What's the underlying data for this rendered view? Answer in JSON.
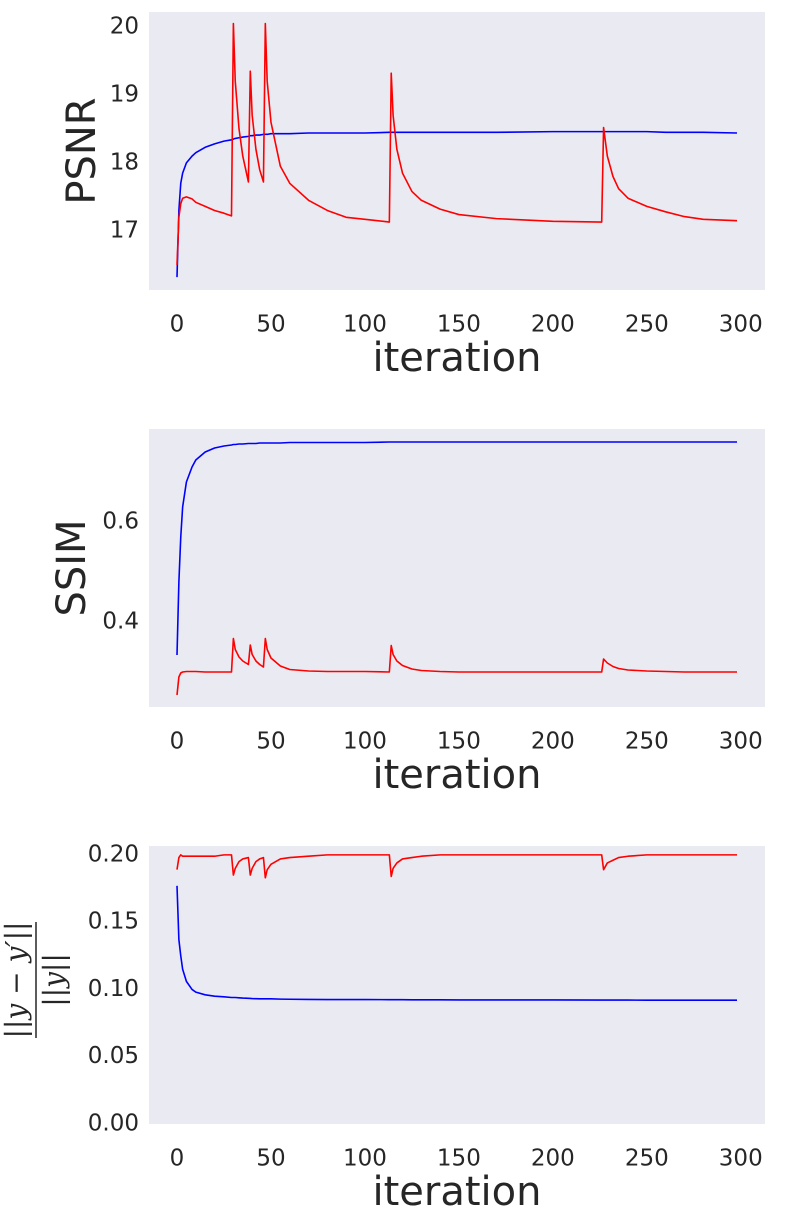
{
  "chart_data": [
    {
      "type": "line",
      "xlabel": "iteration",
      "ylabel": "PSNR",
      "x": [
        0,
        1,
        2,
        3,
        5,
        8,
        10,
        15,
        20,
        25,
        29,
        30,
        31,
        33,
        35,
        38,
        39,
        40,
        42,
        44,
        46,
        47,
        48,
        50,
        55,
        60,
        70,
        80,
        90,
        100,
        113,
        114,
        115,
        117,
        120,
        125,
        130,
        140,
        150,
        170,
        200,
        226,
        227,
        229,
        232,
        235,
        240,
        250,
        260,
        270,
        280,
        298
      ],
      "series": [
        {
          "color": "#0000ff",
          "values": [
            16.32,
            17.3,
            17.7,
            17.85,
            18.0,
            18.1,
            18.15,
            18.23,
            18.28,
            18.32,
            18.34,
            18.35,
            18.36,
            18.37,
            18.38,
            18.39,
            18.4,
            18.4,
            18.41,
            18.41,
            18.42,
            18.42,
            18.42,
            18.43,
            18.43,
            18.43,
            18.44,
            18.44,
            18.44,
            18.44,
            18.45,
            18.45,
            18.45,
            18.45,
            18.45,
            18.45,
            18.45,
            18.45,
            18.45,
            18.45,
            18.46,
            18.46,
            18.46,
            18.46,
            18.46,
            18.46,
            18.46,
            18.46,
            18.45,
            18.45,
            18.45,
            18.44
          ]
        },
        {
          "color": "#ff0000",
          "values": [
            16.5,
            17.2,
            17.4,
            17.48,
            17.5,
            17.47,
            17.42,
            17.36,
            17.3,
            17.26,
            17.22,
            20.05,
            19.2,
            18.5,
            18.1,
            17.72,
            19.35,
            18.7,
            18.2,
            17.9,
            17.72,
            20.05,
            19.2,
            18.6,
            17.95,
            17.7,
            17.45,
            17.3,
            17.2,
            17.17,
            17.13,
            19.32,
            18.7,
            18.2,
            17.85,
            17.58,
            17.45,
            17.32,
            17.24,
            17.18,
            17.14,
            17.13,
            18.52,
            18.1,
            17.8,
            17.62,
            17.48,
            17.36,
            17.28,
            17.21,
            17.17,
            17.15
          ]
        }
      ],
      "xlim": [
        -14.9,
        312.9
      ],
      "xticks": [
        0,
        50,
        100,
        150,
        200,
        250,
        300
      ],
      "ylim": [
        16.13,
        20.22
      ],
      "yticks": [
        17,
        18,
        19,
        20
      ],
      "grid": false,
      "background": "#eaeaf2"
    },
    {
      "type": "line",
      "xlabel": "iteration",
      "ylabel": "SSIM",
      "x": [
        0,
        1,
        2,
        3,
        5,
        8,
        10,
        15,
        20,
        25,
        29,
        30,
        31,
        33,
        35,
        38,
        39,
        40,
        42,
        44,
        46,
        47,
        48,
        50,
        55,
        60,
        70,
        80,
        90,
        100,
        113,
        114,
        115,
        117,
        120,
        125,
        130,
        140,
        150,
        170,
        200,
        226,
        227,
        229,
        232,
        235,
        240,
        250,
        260,
        270,
        280,
        298
      ],
      "series": [
        {
          "color": "#0000ff",
          "values": [
            0.334,
            0.48,
            0.57,
            0.63,
            0.68,
            0.71,
            0.724,
            0.74,
            0.748,
            0.752,
            0.754,
            0.755,
            0.755,
            0.756,
            0.756,
            0.757,
            0.757,
            0.757,
            0.757,
            0.758,
            0.758,
            0.758,
            0.758,
            0.758,
            0.758,
            0.759,
            0.759,
            0.759,
            0.759,
            0.759,
            0.76,
            0.76,
            0.76,
            0.76,
            0.76,
            0.76,
            0.76,
            0.76,
            0.76,
            0.76,
            0.76,
            0.76,
            0.76,
            0.76,
            0.76,
            0.76,
            0.76,
            0.76,
            0.76,
            0.76,
            0.76,
            0.76
          ]
        },
        {
          "color": "#ff0000",
          "values": [
            0.254,
            0.29,
            0.298,
            0.3,
            0.301,
            0.301,
            0.301,
            0.3,
            0.3,
            0.3,
            0.3,
            0.367,
            0.345,
            0.33,
            0.322,
            0.315,
            0.354,
            0.335,
            0.322,
            0.315,
            0.31,
            0.367,
            0.345,
            0.328,
            0.312,
            0.305,
            0.302,
            0.301,
            0.301,
            0.301,
            0.3,
            0.353,
            0.335,
            0.322,
            0.313,
            0.306,
            0.303,
            0.301,
            0.3,
            0.3,
            0.3,
            0.3,
            0.326,
            0.318,
            0.311,
            0.307,
            0.304,
            0.302,
            0.301,
            0.3,
            0.3,
            0.3
          ]
        }
      ],
      "xlim": [
        -14.9,
        312.9
      ],
      "xticks": [
        0,
        50,
        100,
        150,
        200,
        250,
        300
      ],
      "ylim": [
        0.23,
        0.786
      ],
      "yticks": [
        0.4,
        0.6
      ],
      "grid": false,
      "background": "#eaeaf2"
    },
    {
      "type": "line",
      "xlabel": "iteration",
      "ylabel": [
        "||y − y′||",
        "||y||"
      ],
      "x": [
        0,
        1,
        2,
        3,
        5,
        8,
        10,
        15,
        20,
        25,
        29,
        30,
        31,
        33,
        35,
        38,
        39,
        40,
        42,
        44,
        46,
        47,
        48,
        50,
        55,
        60,
        70,
        80,
        90,
        100,
        113,
        114,
        115,
        117,
        120,
        125,
        130,
        140,
        150,
        170,
        200,
        226,
        227,
        229,
        232,
        235,
        240,
        250,
        260,
        270,
        280,
        298
      ],
      "series": [
        {
          "color": "#0000ff",
          "values": [
            0.177,
            0.137,
            0.125,
            0.115,
            0.106,
            0.1,
            0.098,
            0.096,
            0.095,
            0.0945,
            0.094,
            0.094,
            0.094,
            0.0938,
            0.0936,
            0.0934,
            0.0933,
            0.0932,
            0.0931,
            0.093,
            0.093,
            0.093,
            0.093,
            0.093,
            0.0928,
            0.0927,
            0.0926,
            0.0925,
            0.0925,
            0.0925,
            0.0924,
            0.0924,
            0.0924,
            0.0924,
            0.0924,
            0.0923,
            0.0923,
            0.0923,
            0.0922,
            0.0922,
            0.0922,
            0.0921,
            0.0921,
            0.0921,
            0.0921,
            0.0921,
            0.0921,
            0.092,
            0.092,
            0.092,
            0.092,
            0.092
          ]
        },
        {
          "color": "#ff0000",
          "values": [
            0.189,
            0.198,
            0.2,
            0.199,
            0.199,
            0.199,
            0.199,
            0.199,
            0.199,
            0.2,
            0.2,
            0.185,
            0.19,
            0.195,
            0.197,
            0.198,
            0.185,
            0.19,
            0.195,
            0.197,
            0.198,
            0.183,
            0.189,
            0.193,
            0.197,
            0.198,
            0.199,
            0.2,
            0.2,
            0.2,
            0.2,
            0.184,
            0.19,
            0.194,
            0.197,
            0.198,
            0.199,
            0.2,
            0.2,
            0.2,
            0.2,
            0.2,
            0.189,
            0.194,
            0.196,
            0.198,
            0.199,
            0.2,
            0.2,
            0.2,
            0.2,
            0.2
          ]
        }
      ],
      "xlim": [
        -14.9,
        312.9
      ],
      "xticks": [
        0,
        50,
        100,
        150,
        200,
        250,
        300
      ],
      "ylim": [
        0,
        0.2066
      ],
      "yticks": [
        {
          "value": 0,
          "label": "0.00"
        },
        {
          "value": 0.05,
          "label": "0.05"
        },
        {
          "value": 0.1,
          "label": "0.10"
        },
        {
          "value": 0.15,
          "label": "0.15"
        },
        {
          "value": 0.2,
          "label": "0.20"
        }
      ],
      "grid": false,
      "background": "#eaeaf2"
    }
  ]
}
